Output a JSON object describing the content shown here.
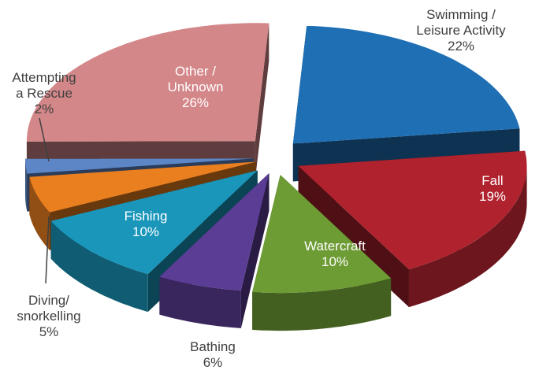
{
  "chart_data": {
    "type": "pie",
    "title": "",
    "legend": "none",
    "slices": [
      {
        "label": "Swimming / Leisure Activity",
        "lines": [
          "Swimming /",
          "Leisure Activity"
        ],
        "value": 22,
        "pct_text": "22%",
        "color": "#1f6fb5",
        "label_position": "outside"
      },
      {
        "label": "Fall",
        "lines": [
          "Fall"
        ],
        "value": 19,
        "pct_text": "19%",
        "color": "#b0232e",
        "label_position": "inside"
      },
      {
        "label": "Watercraft",
        "lines": [
          "Watercraft"
        ],
        "value": 10,
        "pct_text": "10%",
        "color": "#6d9b34",
        "label_position": "inside"
      },
      {
        "label": "Bathing",
        "lines": [
          "Bathing"
        ],
        "value": 6,
        "pct_text": "6%",
        "color": "#5b3d96",
        "label_position": "outside"
      },
      {
        "label": "Fishing",
        "lines": [
          "Fishing"
        ],
        "value": 10,
        "pct_text": "10%",
        "color": "#1996ba",
        "label_position": "inside"
      },
      {
        "label": "Diving/ snorkelling",
        "lines": [
          "Diving/",
          "snorkelling"
        ],
        "value": 5,
        "pct_text": "5%",
        "color": "#ea7f20",
        "label_position": "outside"
      },
      {
        "label": "Attempting a Rescue",
        "lines": [
          "Attempting",
          "a Rescue"
        ],
        "value": 2,
        "pct_text": "2%",
        "color": "#5d86c6",
        "label_position": "outside"
      },
      {
        "label": "Other / Unknown",
        "lines": [
          "Other /",
          "Unknown"
        ],
        "value": 26,
        "pct_text": "26%",
        "color": "#d48789",
        "label_position": "inside"
      }
    ]
  }
}
